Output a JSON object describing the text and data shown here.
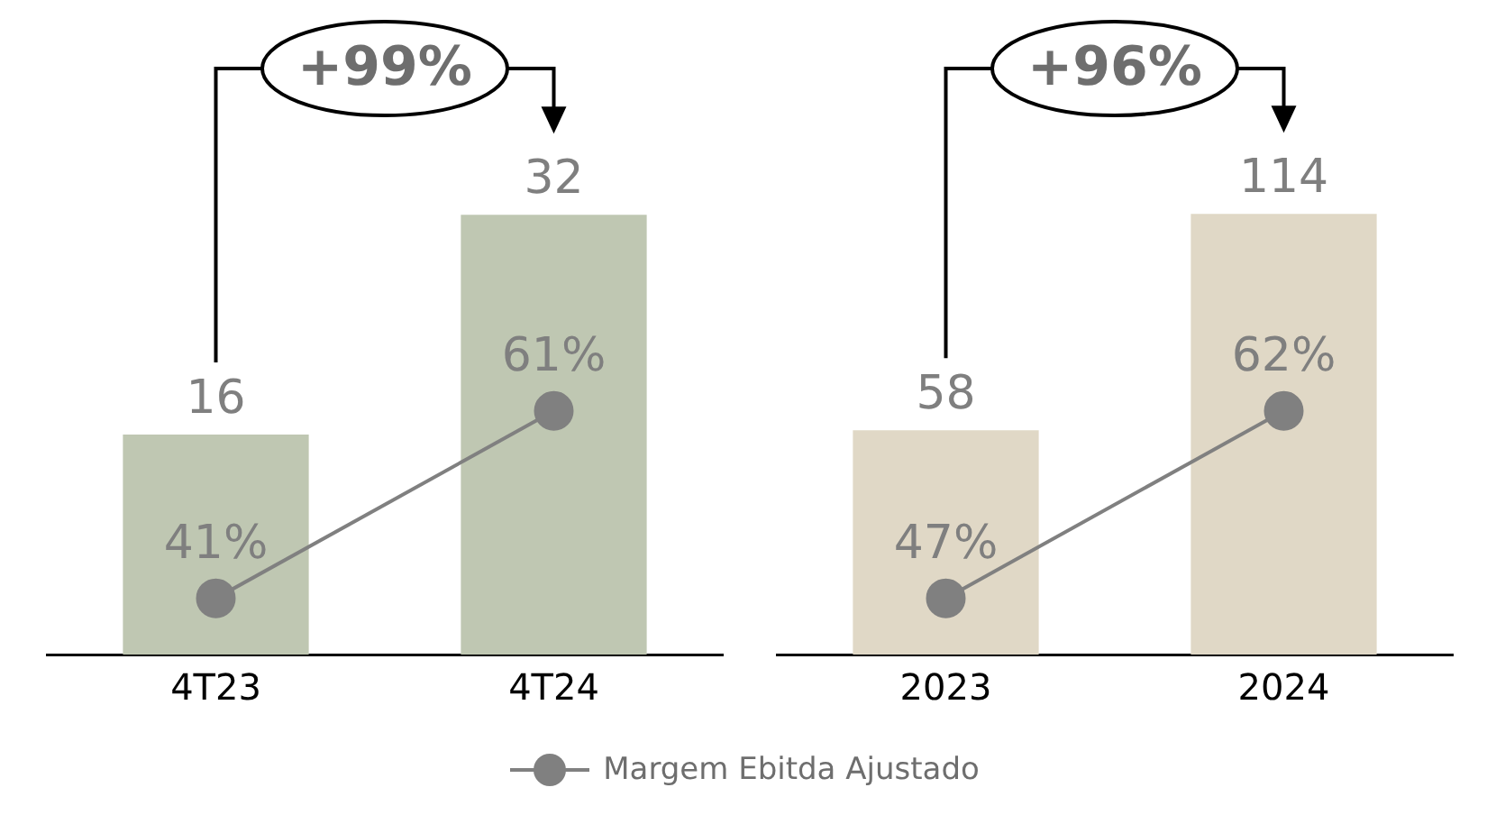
{
  "chart_data": [
    {
      "type": "bar",
      "categories": [
        "4T23",
        "4T24"
      ],
      "data_labels": true,
      "annotations": [
        "+99%"
      ],
      "marker": "circle",
      "series": [
        {
          "color": "#bfc7b2",
          "values": [
            16,
            32
          ]
        },
        {
          "type": "line",
          "axis": "y2",
          "color": "#808080",
          "values": [
            41,
            61
          ],
          "value_labels": [
            "41%",
            "61%"
          ]
        }
      ]
    },
    {
      "type": "bar",
      "categories": [
        "2023",
        "2024"
      ],
      "data_labels": true,
      "annotations": [
        "+96%"
      ],
      "marker": "circle",
      "legend": "bottom",
      "series": [
        {
          "color": "#e0d8c6",
          "values": [
            58,
            114
          ]
        },
        {
          "type": "line",
          "name": "Margem Ebitda Ajustado",
          "axis": "y2",
          "color": "#808080",
          "values": [
            47,
            62
          ],
          "value_labels": [
            "47%",
            "62%"
          ]
        }
      ]
    }
  ]
}
